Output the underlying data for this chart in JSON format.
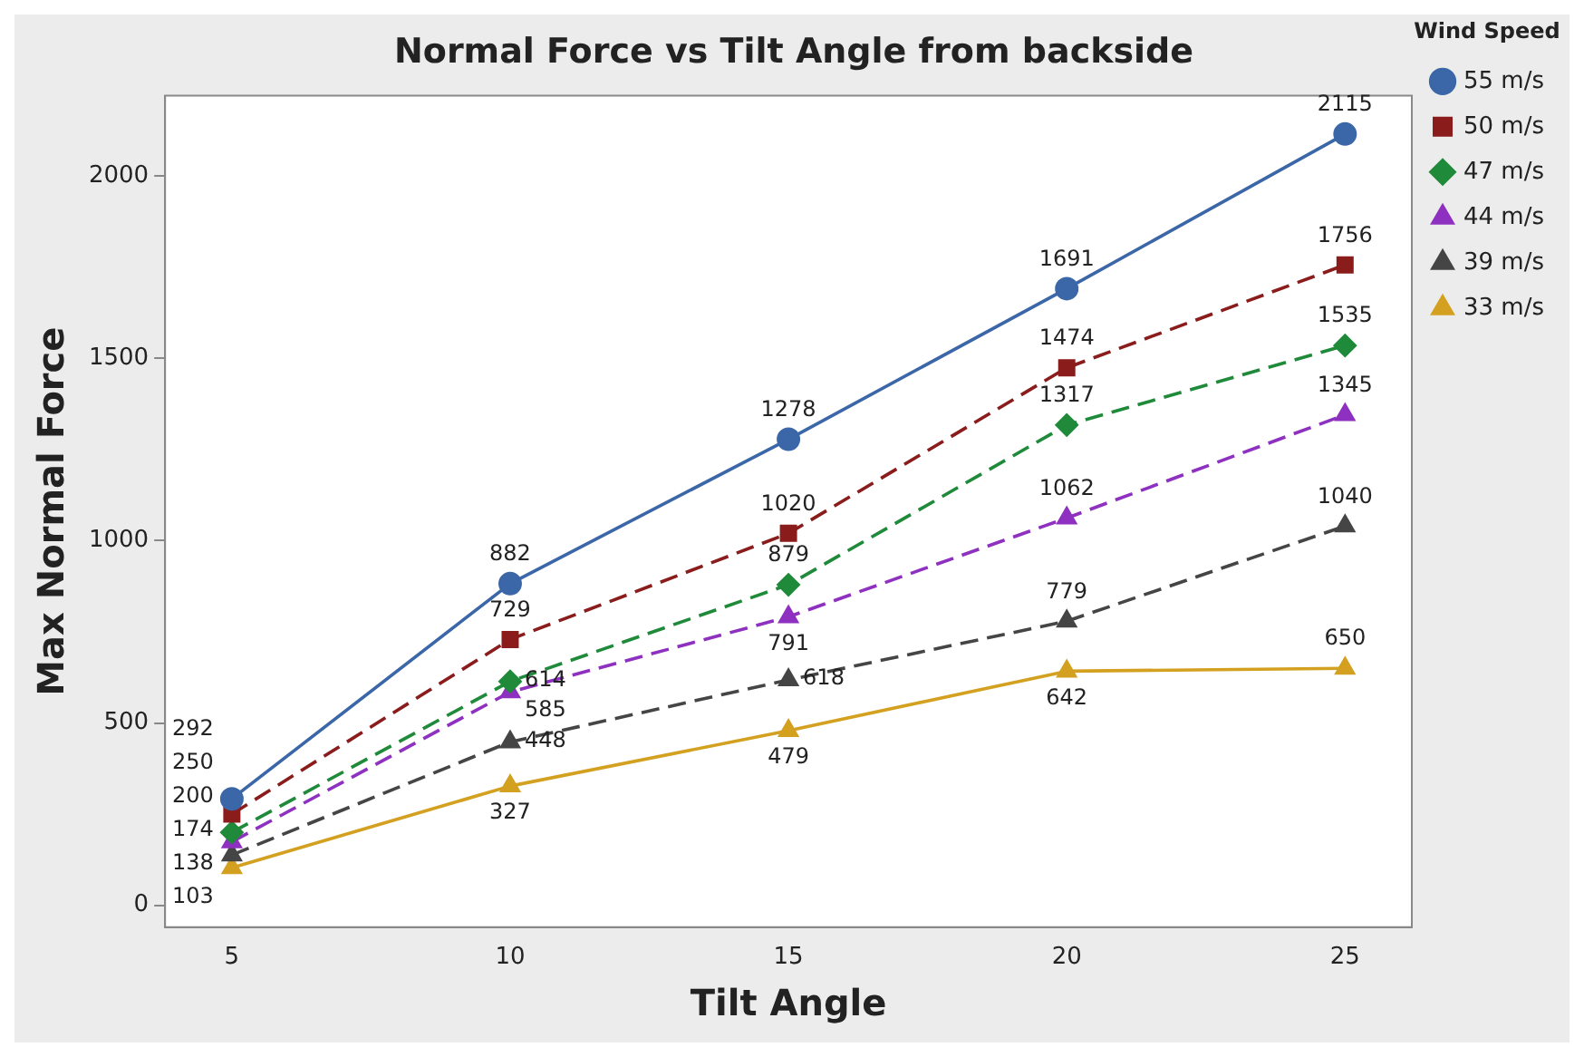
{
  "chart_data": {
    "type": "line",
    "title": "Normal Force vs Tilt Angle from backside",
    "xlabel": "Tilt Angle",
    "ylabel": "Max Normal Force",
    "legend_title": "Wind Speed",
    "legend": "right",
    "grid": false,
    "data_labels": true,
    "x": [
      5,
      10,
      15,
      20,
      25
    ],
    "xlim": [
      3.8,
      26.2
    ],
    "xticks": [
      5,
      10,
      15,
      20,
      25
    ],
    "ylim": [
      -60,
      2220
    ],
    "yticks": [
      0,
      500,
      1000,
      1500,
      2000
    ],
    "series": [
      {
        "name": "55 m/s",
        "color": "#3b67a8",
        "marker": "circle",
        "line_style": "solid",
        "values": [
          292,
          882,
          1278,
          1691,
          2115
        ]
      },
      {
        "name": "50 m/s",
        "color": "#8b1c1c",
        "marker": "square",
        "line_style": "dashed",
        "values": [
          250,
          729,
          1020,
          1474,
          1756
        ]
      },
      {
        "name": "47 m/s",
        "color": "#1f8a3a",
        "marker": "diamond",
        "line_style": "dashed",
        "values": [
          200,
          614,
          879,
          1317,
          1535
        ]
      },
      {
        "name": "44 m/s",
        "color": "#8e30c0",
        "marker": "triangle",
        "line_style": "dashed",
        "values": [
          174,
          585,
          791,
          1062,
          1345
        ]
      },
      {
        "name": "39 m/s",
        "color": "#454545",
        "marker": "triangle",
        "line_style": "dashed",
        "values": [
          138,
          448,
          618,
          779,
          1040
        ]
      },
      {
        "name": "33 m/s",
        "color": "#d4a020",
        "marker": "triangle",
        "line_style": "solid",
        "values": [
          103,
          327,
          479,
          642,
          650
        ]
      }
    ]
  }
}
